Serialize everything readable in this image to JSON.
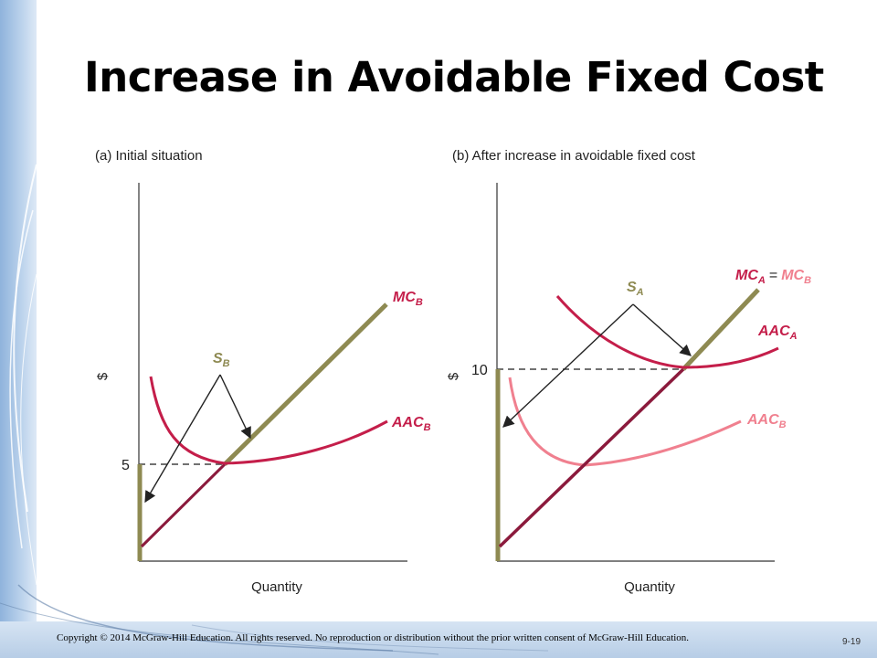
{
  "slide": {
    "title": "Increase in Avoidable Fixed Cost",
    "copyright": "Copyright © 2014 McGraw-Hill Education. All rights reserved. No reproduction or distribution without the prior written consent of McGraw-Hill Education.",
    "slide_number": "9-19"
  },
  "colors": {
    "supply_olive": "#8e8a52",
    "mc_dark": "#8b1a3c",
    "aac_red": "#c41e4a",
    "aac_pink": "#f0808f",
    "dashed": "#444444",
    "arrow": "#222222"
  },
  "panels": [
    {
      "title": "(a) Initial situation",
      "y_axis_label": "$",
      "x_axis_label": "Quantity",
      "tick_value": "5",
      "labels": {
        "supply": {
          "main": "S",
          "sub": "B"
        },
        "mc": {
          "main": "MC",
          "sub": "B"
        },
        "aac": {
          "main": "AAC",
          "sub": "B"
        }
      }
    },
    {
      "title": "(b) After increase in avoidable fixed cost",
      "y_axis_label": "$",
      "x_axis_label": "Quantity",
      "tick_value": "10",
      "labels": {
        "supply": {
          "main": "S",
          "sub": "A"
        },
        "mc_a": {
          "main": "MC",
          "sub": "A"
        },
        "equals": "=",
        "mc_b": {
          "main": "MC",
          "sub": "B"
        },
        "aac_a": {
          "main": "AAC",
          "sub": "A"
        },
        "aac_b": {
          "main": "AAC",
          "sub": "B"
        }
      }
    }
  ]
}
